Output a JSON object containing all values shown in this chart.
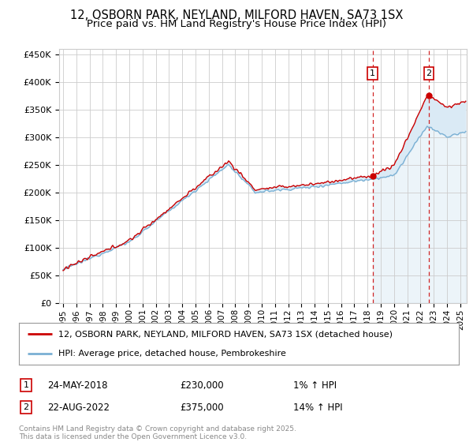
{
  "title": "12, OSBORN PARK, NEYLAND, MILFORD HAVEN, SA73 1SX",
  "subtitle": "Price paid vs. HM Land Registry's House Price Index (HPI)",
  "ylabel_ticks": [
    "£0",
    "£50K",
    "£100K",
    "£150K",
    "£200K",
    "£250K",
    "£300K",
    "£350K",
    "£400K",
    "£450K"
  ],
  "ytick_values": [
    0,
    50000,
    100000,
    150000,
    200000,
    250000,
    300000,
    350000,
    400000,
    450000
  ],
  "ylim": [
    0,
    460000
  ],
  "xlim_start": 1994.7,
  "xlim_end": 2025.5,
  "sale1_date": 2018.38,
  "sale1_price": 230000,
  "sale1_label": "1",
  "sale1_date_str": "24-MAY-2018",
  "sale1_hpi_pct": "1%",
  "sale2_date": 2022.63,
  "sale2_price": 375000,
  "sale2_label": "2",
  "sale2_date_str": "22-AUG-2022",
  "sale2_hpi_pct": "14%",
  "legend_line1": "12, OSBORN PARK, NEYLAND, MILFORD HAVEN, SA73 1SX (detached house)",
  "legend_line2": "HPI: Average price, detached house, Pembrokeshire",
  "footer": "Contains HM Land Registry data © Crown copyright and database right 2025.\nThis data is licensed under the Open Government Licence v3.0.",
  "line_color": "#cc0000",
  "hpi_line_color": "#7ab0d4",
  "hpi_fill_color": "#daeaf5",
  "bg_color": "#ffffff",
  "grid_color": "#cccccc",
  "title_fontsize": 10.5,
  "subtitle_fontsize": 9.5,
  "tick_fontsize": 8,
  "legend_fontsize": 8,
  "ann_fontsize": 8.5,
  "footer_fontsize": 6.5
}
